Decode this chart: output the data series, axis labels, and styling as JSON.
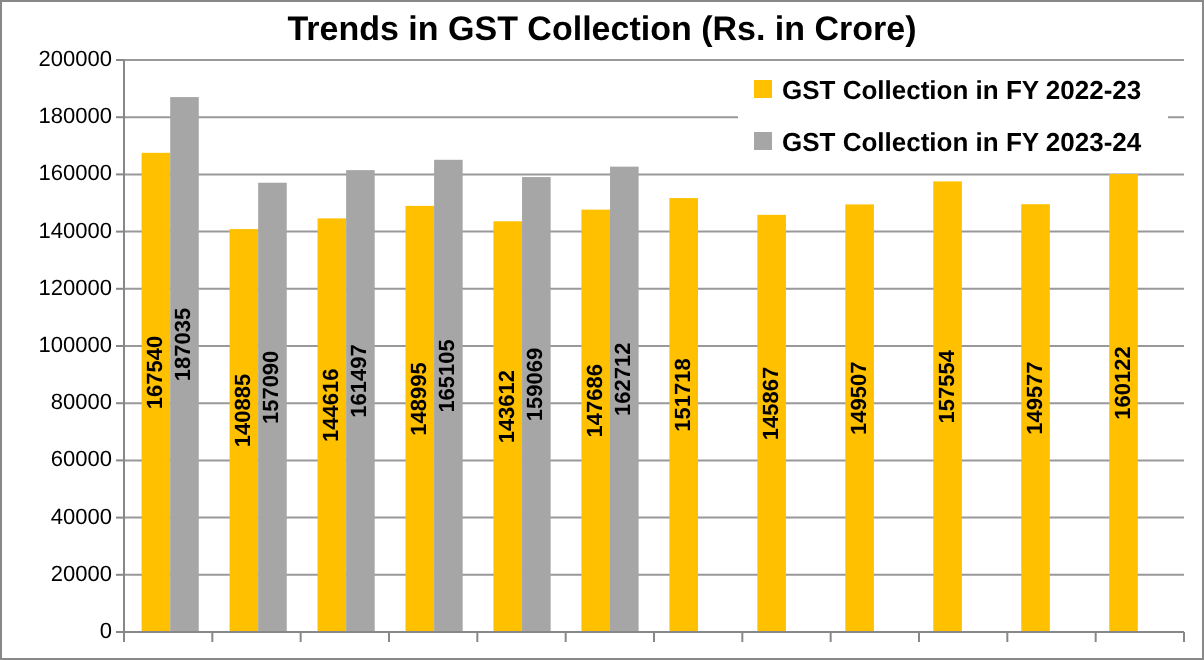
{
  "chart_data": {
    "type": "bar",
    "title": "Trends in GST Collection (Rs. in Crore)",
    "categories": [
      null,
      null,
      null,
      null,
      null,
      null,
      null,
      null,
      null,
      null,
      null,
      null
    ],
    "series": [
      {
        "name": "GST Collection in FY 2022-23",
        "color": "#ffc000",
        "values": [
          167540,
          140885,
          144616,
          148995,
          143612,
          147686,
          151718,
          145867,
          149507,
          157554,
          149577,
          160122
        ]
      },
      {
        "name": "GST Collection in FY 2023-24",
        "color": "#a6a6a6",
        "values": [
          187035,
          157090,
          161497,
          165105,
          159069,
          162712,
          null,
          null,
          null,
          null,
          null,
          null
        ]
      }
    ],
    "ylim": [
      0,
      200000
    ],
    "yticks": [
      0,
      20000,
      40000,
      60000,
      80000,
      100000,
      120000,
      140000,
      160000,
      180000,
      200000
    ],
    "grid": "y",
    "legend": "top right",
    "data_labels": true
  }
}
